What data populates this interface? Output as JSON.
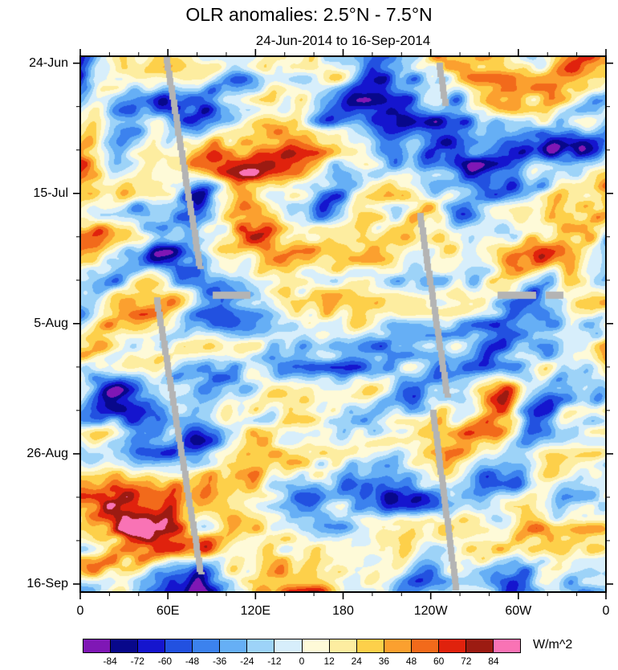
{
  "chart_data": {
    "type": "heatmap",
    "title": "OLR anomalies: 2.5°N - 7.5°N",
    "subtitle": "24-Jun-2014 to 16-Sep-2014",
    "units": "W/m^2",
    "x_axis": {
      "label": "",
      "tick_labels": [
        "0",
        "60E",
        "120E",
        "180",
        "120W",
        "60W",
        "0"
      ],
      "tick_degrees": [
        0,
        60,
        120,
        180,
        240,
        300,
        360
      ],
      "range_degrees": [
        0,
        360
      ],
      "minor_per_major": 2
    },
    "y_axis": {
      "label": "",
      "tick_labels": [
        "24-Jun",
        "15-Jul",
        "5-Aug",
        "26-Aug",
        "16-Sep"
      ],
      "tick_days": [
        0,
        21,
        42,
        63,
        84
      ],
      "range_days": [
        0,
        84
      ],
      "minor_step_days": 7,
      "direction": "time increases downward"
    },
    "colorbar": {
      "levels": [
        -84,
        -72,
        -60,
        -48,
        -36,
        -24,
        -12,
        0,
        12,
        24,
        36,
        48,
        60,
        72,
        84
      ],
      "level_step": 12,
      "colors": [
        "#7F17B5",
        "#08088B",
        "#1515CE",
        "#2251E0",
        "#3C82EE",
        "#66AFF5",
        "#9DD3F8",
        "#D7EEFB",
        "#FEFAD8",
        "#FDEDA0",
        "#FDD04A",
        "#FBA02F",
        "#F26A1B",
        "#E0220D",
        "#9C1B12",
        "#F973B5"
      ],
      "missing_color": "#B4B4B4"
    },
    "grid": "off",
    "legend_position": "bottom colorbar"
  }
}
